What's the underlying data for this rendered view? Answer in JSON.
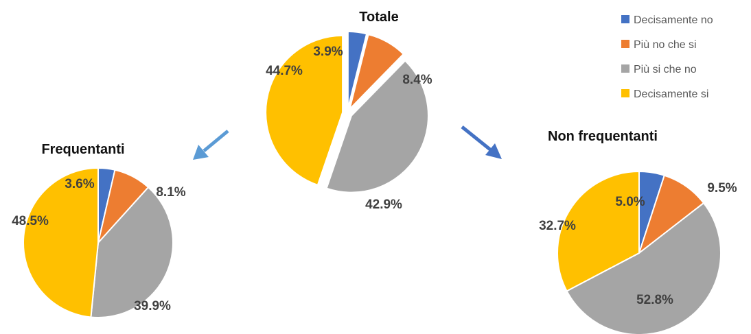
{
  "legend": {
    "items": [
      {
        "label": "Decisamente no",
        "color": "#4472C4"
      },
      {
        "label": "Più no che si",
        "color": "#ED7D31"
      },
      {
        "label": "Più si che no",
        "color": "#A5A5A5"
      },
      {
        "label": "Decisamente si",
        "color": "#FFC000"
      }
    ]
  },
  "arrow_colors": [
    "#5B9BD5",
    "#4472C4"
  ],
  "chart_data": [
    {
      "type": "pie",
      "title": "Totale",
      "categories": [
        "Decisamente no",
        "Più no che si",
        "Più si che no",
        "Decisamente si"
      ],
      "values": [
        3.9,
        8.4,
        42.9,
        44.7
      ],
      "labels": [
        "3.9%",
        "8.4%",
        "42.9%",
        "44.7%"
      ],
      "exploded": true
    },
    {
      "type": "pie",
      "title": "Frequentanti",
      "categories": [
        "Decisamente no",
        "Più no che si",
        "Più si che no",
        "Decisamente si"
      ],
      "values": [
        3.6,
        8.1,
        39.9,
        48.5
      ],
      "labels": [
        "3.6%",
        "8.1%",
        "39.9%",
        "48.5%"
      ]
    },
    {
      "type": "pie",
      "title": "Non frequentanti",
      "categories": [
        "Decisamente no",
        "Più no che si",
        "Più si che no",
        "Decisamente si"
      ],
      "values": [
        5.0,
        9.5,
        52.8,
        32.7
      ],
      "labels": [
        "5.0%",
        "9.5%",
        "52.8%",
        "32.7%"
      ]
    }
  ]
}
